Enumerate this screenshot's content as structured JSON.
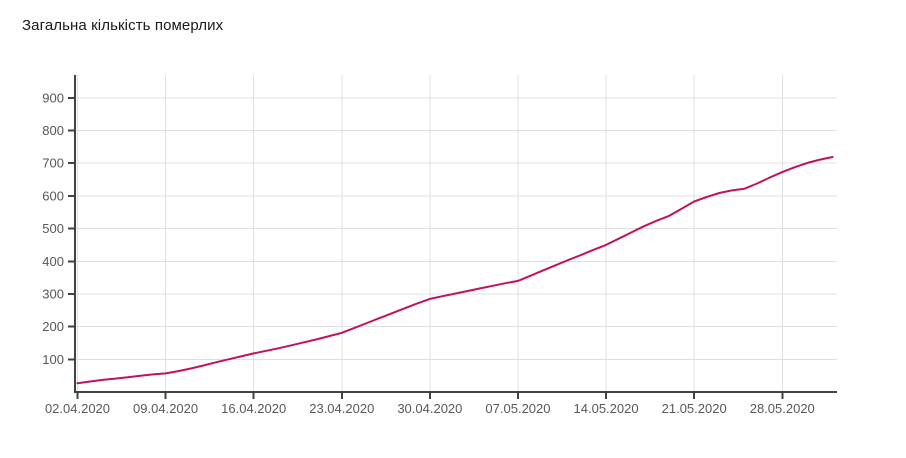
{
  "title": "Загальна кількість померлих",
  "colors": {
    "line": "#c0135f",
    "grid": "#e0e0e0",
    "axis": "#424242",
    "tick_label": "#585858",
    "title": "#1a1a1a",
    "background": "#ffffff"
  },
  "chart_data": {
    "type": "line",
    "title": "Загальна кількість померлих",
    "xlabel": "",
    "ylabel": "",
    "grid": true,
    "legend_position": "none",
    "ylim": [
      0,
      970
    ],
    "y_ticks": [
      100,
      200,
      300,
      400,
      500,
      600,
      700,
      800,
      900
    ],
    "x_tick_labels": [
      "02.04.2020",
      "09.04.2020",
      "16.04.2020",
      "23.04.2020",
      "30.04.2020",
      "07.05.2020",
      "14.05.2020",
      "21.05.2020",
      "28.05.2020"
    ],
    "x": [
      "02.04.2020",
      "03.04.2020",
      "04.04.2020",
      "05.04.2020",
      "06.04.2020",
      "07.04.2020",
      "08.04.2020",
      "09.04.2020",
      "10.04.2020",
      "11.04.2020",
      "12.04.2020",
      "13.04.2020",
      "14.04.2020",
      "15.04.2020",
      "16.04.2020",
      "17.04.2020",
      "18.04.2020",
      "19.04.2020",
      "20.04.2020",
      "21.04.2020",
      "22.04.2020",
      "23.04.2020",
      "24.04.2020",
      "25.04.2020",
      "26.04.2020",
      "27.04.2020",
      "28.04.2020",
      "29.04.2020",
      "30.04.2020",
      "01.05.2020",
      "02.05.2020",
      "03.05.2020",
      "04.05.2020",
      "05.05.2020",
      "06.05.2020",
      "07.05.2020",
      "08.05.2020",
      "09.05.2020",
      "10.05.2020",
      "11.05.2020",
      "12.05.2020",
      "13.05.2020",
      "14.05.2020",
      "15.05.2020",
      "16.05.2020",
      "17.05.2020",
      "18.05.2020",
      "19.05.2020",
      "20.05.2020",
      "21.05.2020",
      "22.05.2020",
      "23.05.2020",
      "24.05.2020",
      "25.05.2020",
      "26.05.2020",
      "27.05.2020",
      "28.05.2020",
      "29.05.2020",
      "30.05.2020",
      "31.05.2020",
      "01.06.2020"
    ],
    "series": [
      {
        "name": "Загальна кількість померлих",
        "values": [
          27,
          32,
          37,
          41,
          45,
          50,
          54,
          57,
          64,
          72,
          81,
          91,
          100,
          109,
          118,
          126,
          134,
          143,
          152,
          161,
          171,
          181,
          196,
          211,
          226,
          241,
          256,
          271,
          285,
          293,
          301,
          309,
          317,
          325,
          333,
          340,
          356,
          372,
          388,
          404,
          419,
          435,
          450,
          469,
          488,
          507,
          524,
          539,
          561,
          583,
          597,
          609,
          617,
          622,
          638,
          656,
          673,
          688,
          701,
          711,
          719
        ]
      }
    ]
  }
}
